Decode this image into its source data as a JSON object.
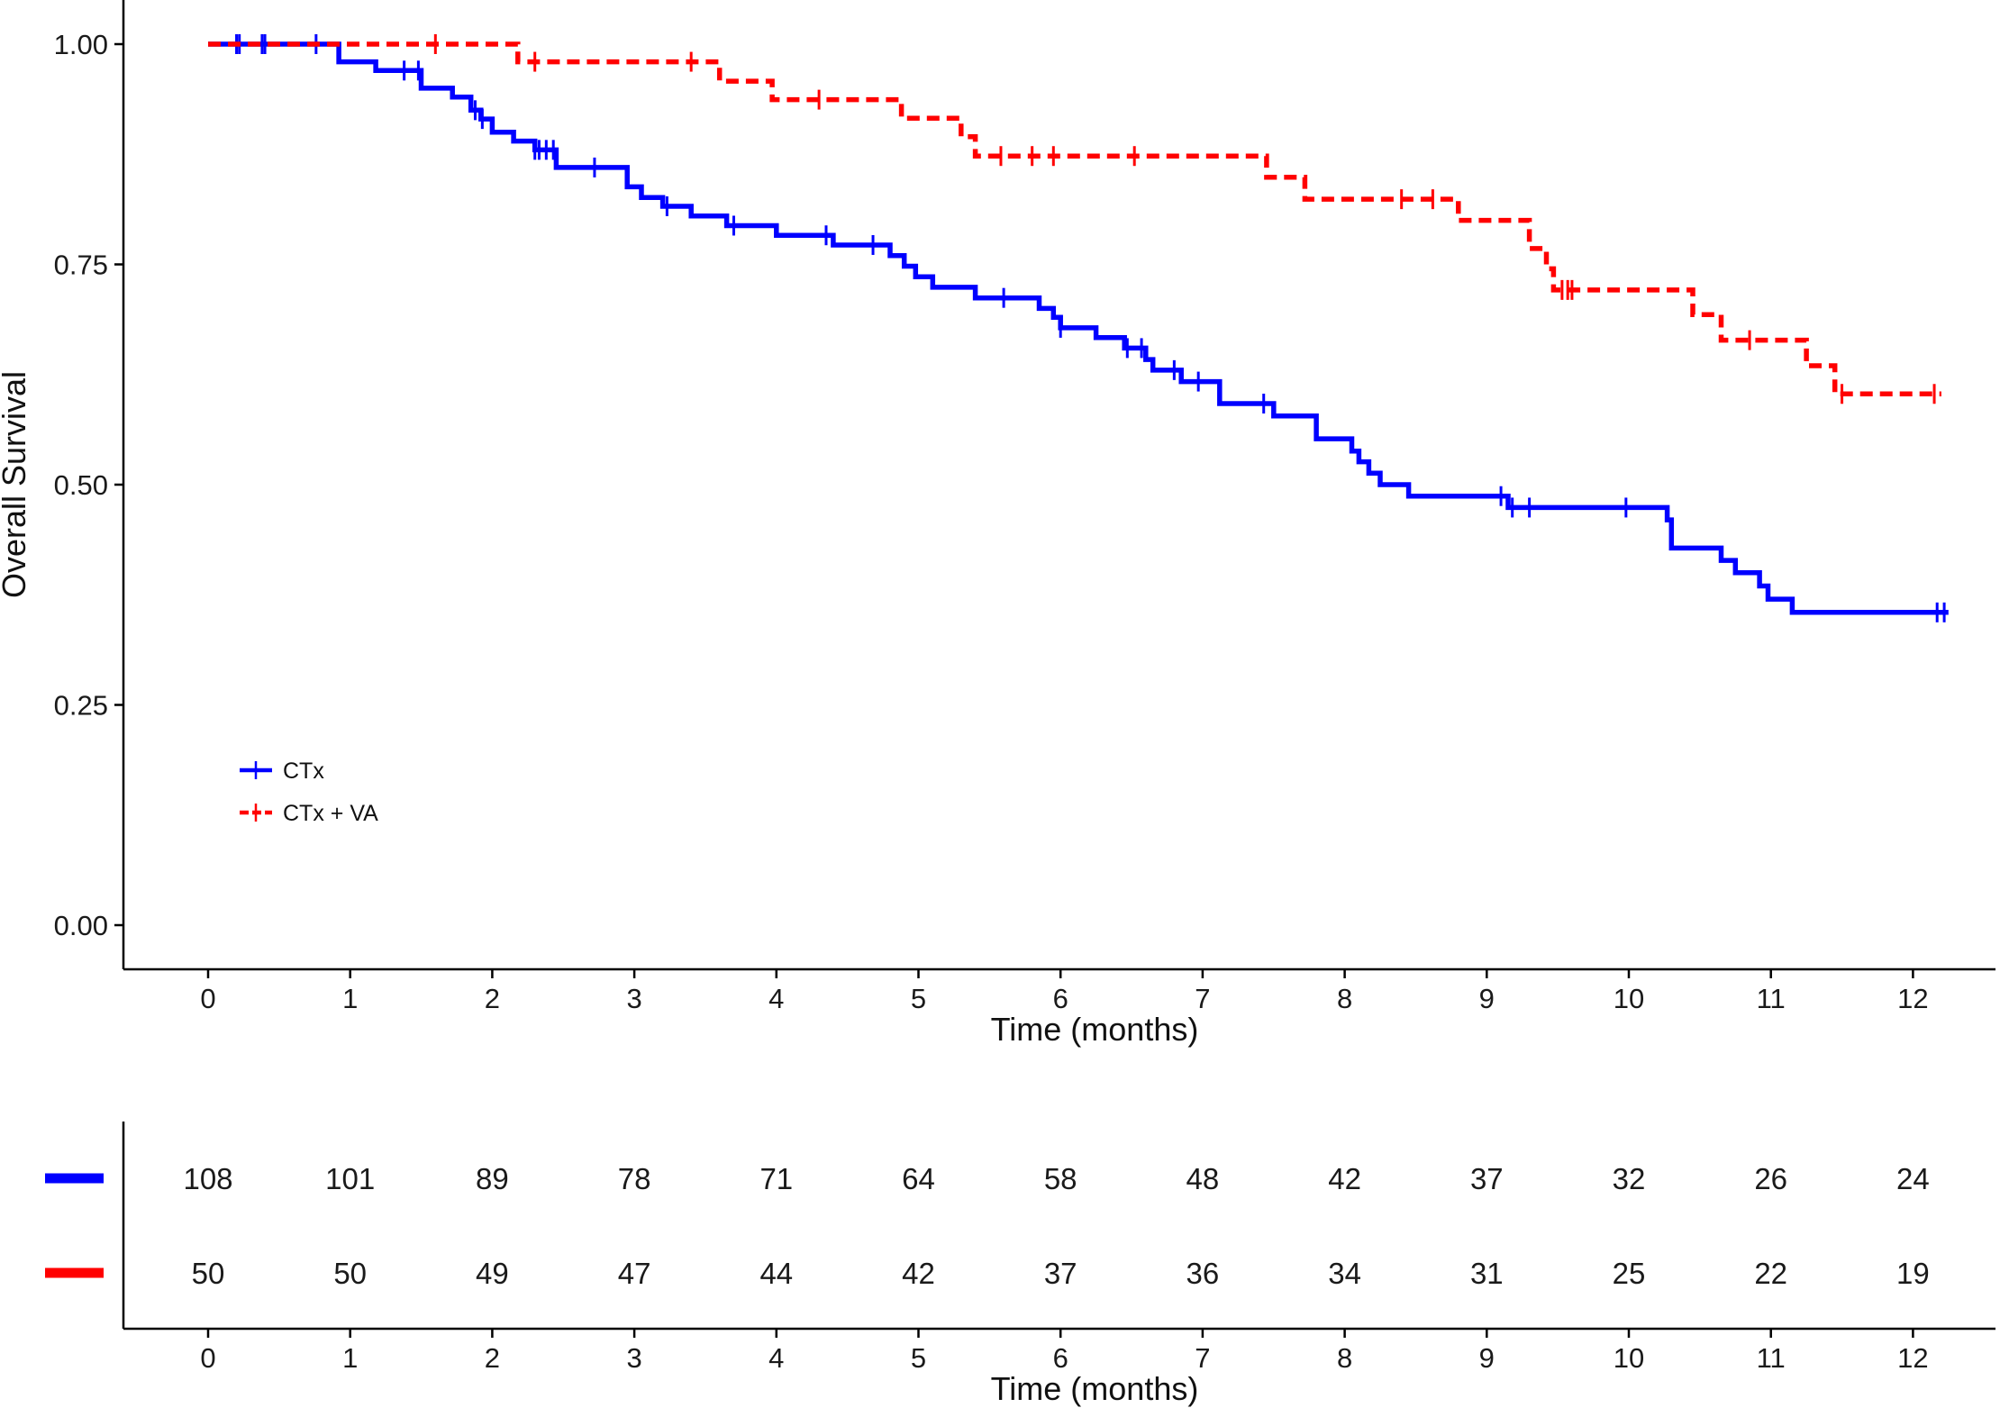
{
  "chart_data": {
    "type": "line",
    "subtype": "kaplan-meier",
    "xlabel": "Time (months)",
    "ylabel": "Overall Survival",
    "xlim": [
      -0.6,
      12.6
    ],
    "ylim": [
      -0.05,
      1.05
    ],
    "xticks": [
      0,
      1,
      2,
      3,
      4,
      5,
      6,
      7,
      8,
      9,
      10,
      11,
      12
    ],
    "yticks": [
      0,
      0.25,
      0.5,
      0.75,
      1.0
    ],
    "ytick_labels": [
      "0.00",
      "0.25",
      "0.50",
      "0.75",
      "1.00"
    ],
    "grid": false,
    "legend_position": "bottom-left",
    "series": [
      {
        "name": "CTx",
        "color": "#0000ff",
        "line_style": "solid",
        "steps": [
          [
            0,
            1.0
          ],
          [
            0.92,
            0.98
          ],
          [
            1.18,
            0.97
          ],
          [
            1.5,
            0.95
          ],
          [
            1.72,
            0.94
          ],
          [
            1.85,
            0.925
          ],
          [
            1.92,
            0.915
          ],
          [
            2.0,
            0.9
          ],
          [
            2.15,
            0.89
          ],
          [
            2.3,
            0.88
          ],
          [
            2.45,
            0.86
          ],
          [
            2.95,
            0.838
          ],
          [
            3.05,
            0.826
          ],
          [
            3.2,
            0.816
          ],
          [
            3.4,
            0.805
          ],
          [
            3.65,
            0.794
          ],
          [
            4.0,
            0.783
          ],
          [
            4.4,
            0.772
          ],
          [
            4.8,
            0.76
          ],
          [
            4.9,
            0.748
          ],
          [
            4.98,
            0.736
          ],
          [
            5.1,
            0.724
          ],
          [
            5.4,
            0.712
          ],
          [
            5.85,
            0.7
          ],
          [
            5.95,
            0.69
          ],
          [
            6.0,
            0.678
          ],
          [
            6.25,
            0.667
          ],
          [
            6.45,
            0.655
          ],
          [
            6.6,
            0.642
          ],
          [
            6.65,
            0.63
          ],
          [
            6.85,
            0.617
          ],
          [
            7.12,
            0.592
          ],
          [
            7.5,
            0.578
          ],
          [
            7.8,
            0.552
          ],
          [
            8.05,
            0.538
          ],
          [
            8.1,
            0.526
          ],
          [
            8.17,
            0.513
          ],
          [
            8.25,
            0.5
          ],
          [
            8.45,
            0.487
          ],
          [
            9.15,
            0.474
          ],
          [
            10.27,
            0.46
          ],
          [
            10.3,
            0.428
          ],
          [
            10.65,
            0.414
          ],
          [
            10.75,
            0.4
          ],
          [
            10.92,
            0.385
          ],
          [
            10.98,
            0.37
          ],
          [
            11.15,
            0.355
          ],
          [
            12.25,
            0.355
          ]
        ],
        "censor_times": [
          0.2,
          0.22,
          0.38,
          0.4,
          0.76,
          1.38,
          1.48,
          1.88,
          1.93,
          2.3,
          2.33,
          2.38,
          2.43,
          2.72,
          3.23,
          3.7,
          4.35,
          4.68,
          5.6,
          6.0,
          6.47,
          6.57,
          6.8,
          6.97,
          7.43,
          9.1,
          9.18,
          9.3,
          9.98,
          12.17,
          12.22
        ]
      },
      {
        "name": "CTx + VA",
        "color": "#ff0000",
        "line_style": "dashed",
        "steps": [
          [
            0,
            1.0
          ],
          [
            2.18,
            0.98
          ],
          [
            3.6,
            0.958
          ],
          [
            3.97,
            0.937
          ],
          [
            4.88,
            0.916
          ],
          [
            5.3,
            0.895
          ],
          [
            5.4,
            0.873
          ],
          [
            7.45,
            0.849
          ],
          [
            7.72,
            0.824
          ],
          [
            8.8,
            0.8
          ],
          [
            9.3,
            0.768
          ],
          [
            9.42,
            0.745
          ],
          [
            9.47,
            0.721
          ],
          [
            10.45,
            0.693
          ],
          [
            10.65,
            0.664
          ],
          [
            11.25,
            0.635
          ],
          [
            11.45,
            0.603
          ],
          [
            12.2,
            0.603
          ]
        ],
        "censor_times": [
          1.6,
          2.3,
          3.4,
          4.3,
          5.58,
          5.8,
          5.95,
          6.52,
          8.4,
          8.62,
          9.53,
          9.57,
          9.6,
          10.85,
          11.5,
          12.15
        ]
      }
    ],
    "risk_table": {
      "xlabel": "Time (months)",
      "times": [
        0,
        1,
        2,
        3,
        4,
        5,
        6,
        7,
        8,
        9,
        10,
        11,
        12
      ],
      "rows": [
        {
          "color": "#0000ff",
          "counts": [
            "108",
            "101",
            "89",
            "78",
            "71",
            "64",
            "58",
            "48",
            "42",
            "37",
            "32",
            "26",
            "24"
          ]
        },
        {
          "color": "#ff0000",
          "counts": [
            "50",
            "50",
            "49",
            "47",
            "44",
            "42",
            "37",
            "36",
            "34",
            "31",
            "25",
            "22",
            "19"
          ]
        }
      ]
    }
  }
}
